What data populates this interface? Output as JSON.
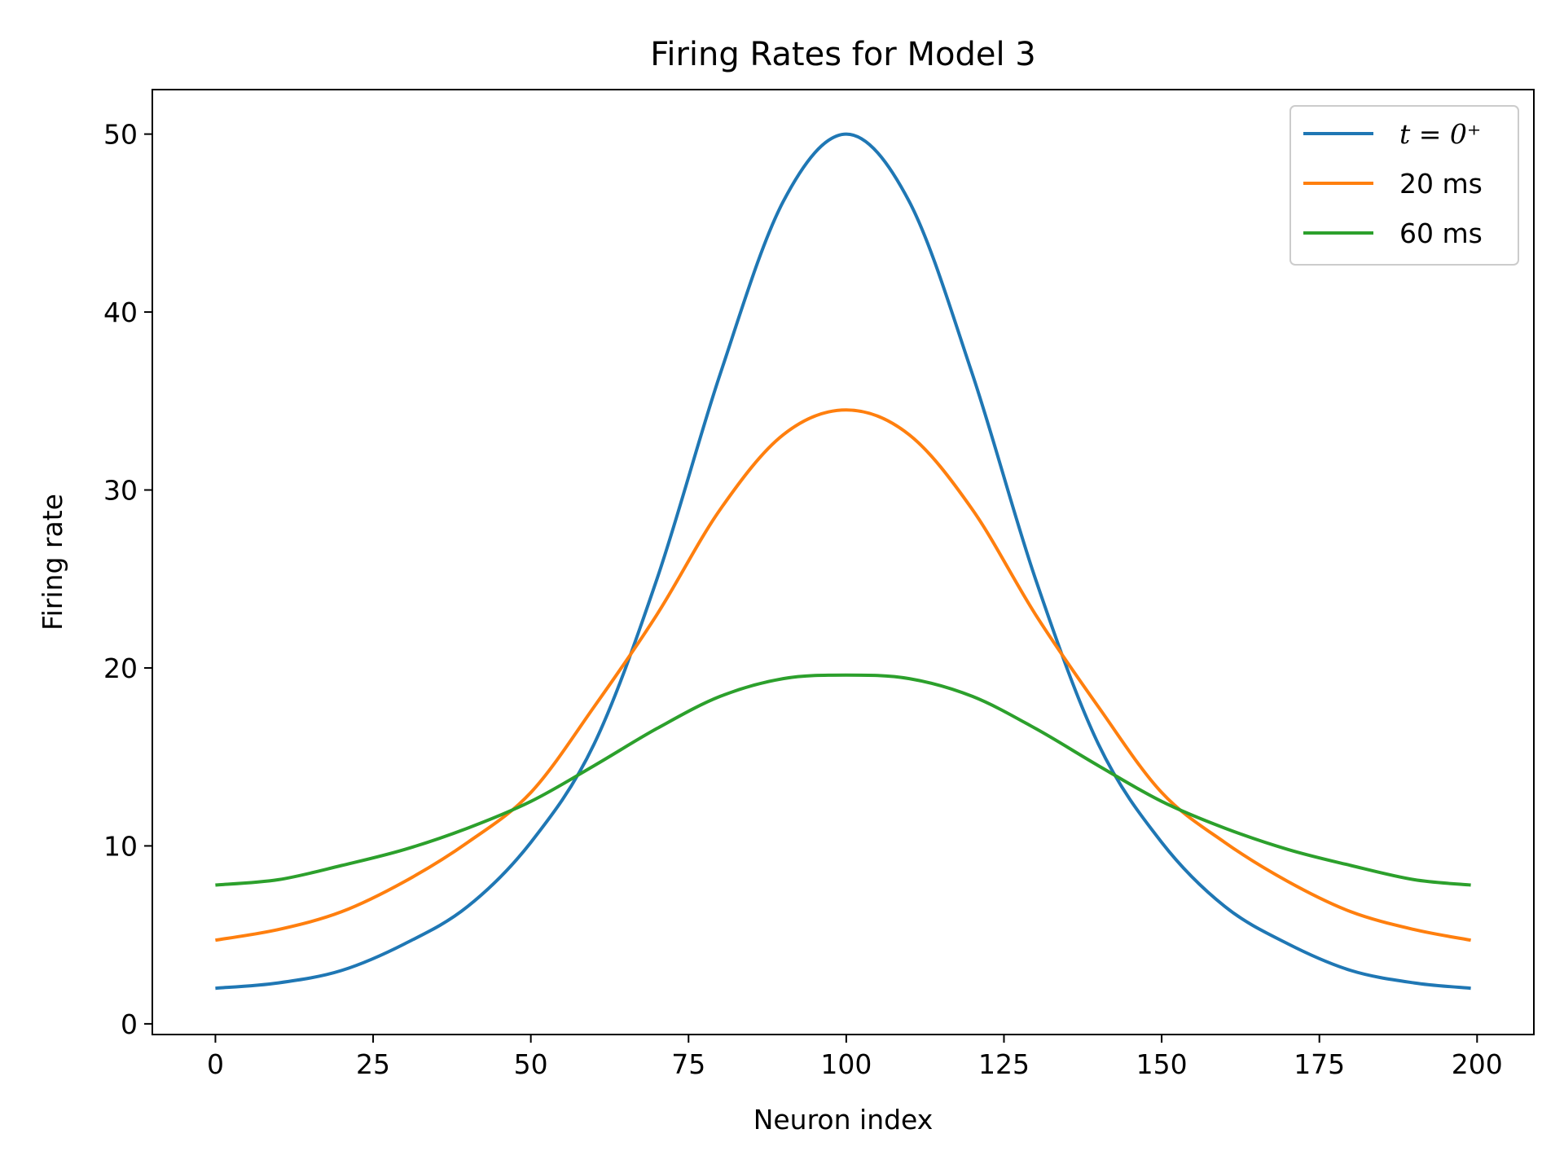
{
  "chart_data": {
    "type": "line",
    "title": "Firing Rates for Model 3",
    "xlabel": "Neuron index",
    "ylabel": "Firing rate",
    "xlim": [
      -10,
      209
    ],
    "ylim": [
      -0.6,
      52.5
    ],
    "xticks": [
      "0",
      "25",
      "50",
      "75",
      "100",
      "125",
      "150",
      "175",
      "200"
    ],
    "xtick_values": [
      0,
      25,
      50,
      75,
      100,
      125,
      150,
      175,
      200
    ],
    "yticks": [
      "0",
      "10",
      "20",
      "30",
      "40",
      "50"
    ],
    "ytick_values": [
      0,
      10,
      20,
      30,
      40,
      50
    ],
    "grid": false,
    "legend_position": "top-right",
    "x": [
      0,
      10,
      20,
      30,
      40,
      50,
      60,
      70,
      80,
      90,
      100,
      110,
      120,
      130,
      140,
      150,
      160,
      170,
      180,
      190,
      199
    ],
    "series": [
      {
        "name": "t = 0⁺",
        "color": "#1f77b4",
        "values": [
          2.0,
          2.3,
          3.0,
          4.5,
          6.6,
          10.2,
          15.7,
          25.0,
          36.5,
          46.2,
          50.0,
          46.2,
          36.5,
          25.0,
          15.7,
          10.2,
          6.6,
          4.5,
          3.0,
          2.3,
          2.0
        ]
      },
      {
        "name": "20 ms",
        "color": "#ff7f0e",
        "values": [
          4.7,
          5.3,
          6.3,
          8.0,
          10.2,
          13.0,
          17.8,
          23.0,
          28.9,
          33.1,
          34.5,
          33.1,
          28.9,
          23.0,
          17.8,
          13.0,
          10.2,
          8.0,
          6.3,
          5.3,
          4.7
        ]
      },
      {
        "name": "60 ms",
        "color": "#2ca02c",
        "values": [
          7.8,
          8.1,
          8.9,
          9.8,
          11.0,
          12.5,
          14.5,
          16.6,
          18.4,
          19.4,
          19.6,
          19.4,
          18.4,
          16.6,
          14.5,
          12.5,
          11.0,
          9.8,
          8.9,
          8.1,
          7.8
        ]
      }
    ]
  }
}
